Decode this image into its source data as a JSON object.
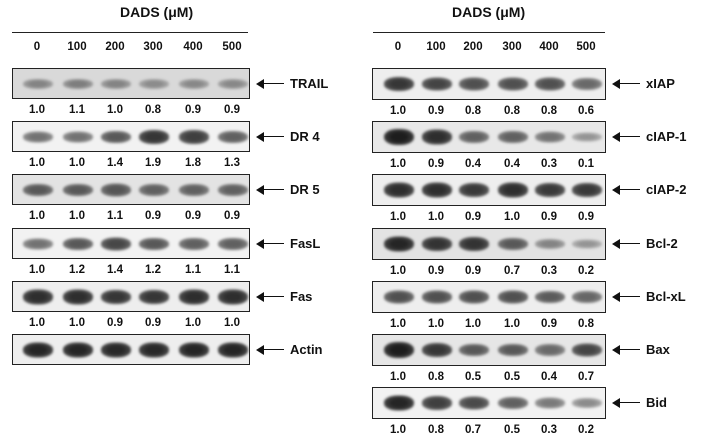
{
  "panels": [
    {
      "title": "DADS (μM)",
      "doses": [
        "0",
        "100",
        "200",
        "300",
        "400",
        "500"
      ],
      "rows": [
        {
          "label": "TRAIL",
          "ratios": [
            "1.0",
            "1.1",
            "1.0",
            "0.8",
            "0.9",
            "0.9"
          ],
          "intensity": [
            0.35,
            0.38,
            0.35,
            0.3,
            0.32,
            0.32
          ],
          "background": "#d9d9d9"
        },
        {
          "label": "DR 4",
          "ratios": [
            "1.0",
            "1.0",
            "1.4",
            "1.9",
            "1.8",
            "1.3"
          ],
          "intensity": [
            0.45,
            0.45,
            0.6,
            0.8,
            0.75,
            0.55
          ],
          "background": "#f2f2f2"
        },
        {
          "label": "DR 5",
          "ratios": [
            "1.0",
            "1.0",
            "1.1",
            "0.9",
            "0.9",
            "0.9"
          ],
          "intensity": [
            0.6,
            0.6,
            0.62,
            0.55,
            0.55,
            0.55
          ],
          "background": "#e3e3e3"
        },
        {
          "label": "FasL",
          "ratios": [
            "1.0",
            "1.2",
            "1.4",
            "1.2",
            "1.1",
            "1.1"
          ],
          "intensity": [
            0.45,
            0.6,
            0.7,
            0.6,
            0.55,
            0.55
          ],
          "background": "#f2f2f2"
        },
        {
          "label": "Fas",
          "ratios": [
            "1.0",
            "1.0",
            "0.9",
            "0.9",
            "1.0",
            "1.0"
          ],
          "intensity": [
            0.85,
            0.85,
            0.8,
            0.8,
            0.85,
            0.85
          ],
          "background": "#eeeeee"
        },
        {
          "label": "Actin",
          "ratios": [],
          "intensity": [
            0.9,
            0.9,
            0.88,
            0.88,
            0.9,
            0.9
          ],
          "background": "#eeeeee"
        }
      ]
    },
    {
      "title": "DADS (μM)",
      "doses": [
        "0",
        "100",
        "200",
        "300",
        "400",
        "500"
      ],
      "rows": [
        {
          "label": "xIAP",
          "ratios": [
            "1.0",
            "0.9",
            "0.8",
            "0.8",
            "0.8",
            "0.6"
          ],
          "intensity": [
            0.8,
            0.72,
            0.65,
            0.65,
            0.65,
            0.5
          ],
          "background": "#eeeeee"
        },
        {
          "label": "cIAP-1",
          "ratios": [
            "1.0",
            "0.9",
            "0.4",
            "0.4",
            "0.3",
            "0.1"
          ],
          "intensity": [
            0.95,
            0.85,
            0.55,
            0.55,
            0.45,
            0.25
          ],
          "background": "#e8e8e8"
        },
        {
          "label": "cIAP-2",
          "ratios": [
            "1.0",
            "1.0",
            "0.9",
            "1.0",
            "0.9",
            "0.9"
          ],
          "intensity": [
            0.85,
            0.85,
            0.78,
            0.85,
            0.78,
            0.78
          ],
          "background": "#eeeeee"
        },
        {
          "label": "Bcl-2",
          "ratios": [
            "1.0",
            "0.9",
            "0.9",
            "0.7",
            "0.3",
            "0.2"
          ],
          "intensity": [
            0.9,
            0.82,
            0.82,
            0.6,
            0.35,
            0.25
          ],
          "background": "#e3e3e3"
        },
        {
          "label": "Bcl-xL",
          "ratios": [
            "1.0",
            "1.0",
            "1.0",
            "1.0",
            "0.9",
            "0.8"
          ],
          "intensity": [
            0.65,
            0.65,
            0.65,
            0.65,
            0.58,
            0.52
          ],
          "background": "#eeeeee"
        },
        {
          "label": "Bax",
          "ratios": [
            "1.0",
            "0.8",
            "0.5",
            "0.5",
            "0.4",
            "0.7"
          ],
          "intensity": [
            0.95,
            0.8,
            0.6,
            0.6,
            0.5,
            0.72
          ],
          "background": "#e6e6e6"
        },
        {
          "label": "Bid",
          "ratios": [
            "1.0",
            "0.8",
            "0.7",
            "0.5",
            "0.3",
            "0.2"
          ],
          "intensity": [
            0.9,
            0.75,
            0.68,
            0.55,
            0.4,
            0.3
          ],
          "background": "#f2f2f2"
        }
      ]
    }
  ]
}
